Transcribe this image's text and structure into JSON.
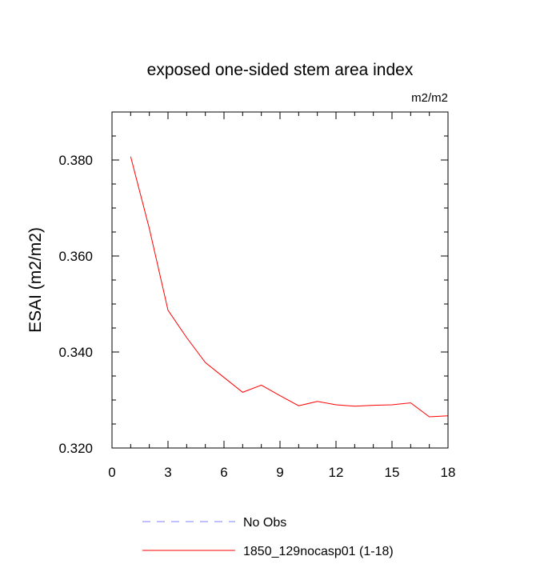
{
  "chart_data": {
    "type": "line",
    "title": "exposed one-sided stem area index",
    "units_label": "m2/m2",
    "ylabel": "ESAI  (m2/m2)",
    "xlabel": "",
    "xlim": [
      0,
      18
    ],
    "ylim": [
      0.32,
      0.39
    ],
    "x_ticks": [
      0,
      3,
      6,
      9,
      12,
      15,
      18
    ],
    "x_tick_labels": [
      "0",
      "3",
      "6",
      "9",
      "12",
      "15",
      "18"
    ],
    "y_ticks": [
      0.32,
      0.34,
      0.36,
      0.38
    ],
    "y_tick_labels": [
      "0.320",
      "0.340",
      "0.360",
      "0.380"
    ],
    "grid": false,
    "legend_position": "bottom",
    "series": [
      {
        "name": "1850_129nocasp01 (1-18)",
        "color": "#ff0000",
        "dash": "solid",
        "x": [
          1,
          2,
          3,
          4,
          5,
          6,
          7,
          8,
          9,
          10,
          11,
          12,
          13,
          14,
          15,
          16,
          17,
          18
        ],
        "values": [
          0.3807,
          0.3657,
          0.3487,
          0.343,
          0.3378,
          0.3347,
          0.3316,
          0.3331,
          0.3309,
          0.3288,
          0.3297,
          0.329,
          0.3287,
          0.3289,
          0.329,
          0.3294,
          0.3265,
          0.3267
        ]
      }
    ],
    "legend": [
      {
        "label": "No Obs",
        "color": "#8080ff",
        "dash": "dashed"
      },
      {
        "label": "1850_129nocasp01 (1-18)",
        "color": "#ff0000",
        "dash": "solid"
      }
    ]
  }
}
